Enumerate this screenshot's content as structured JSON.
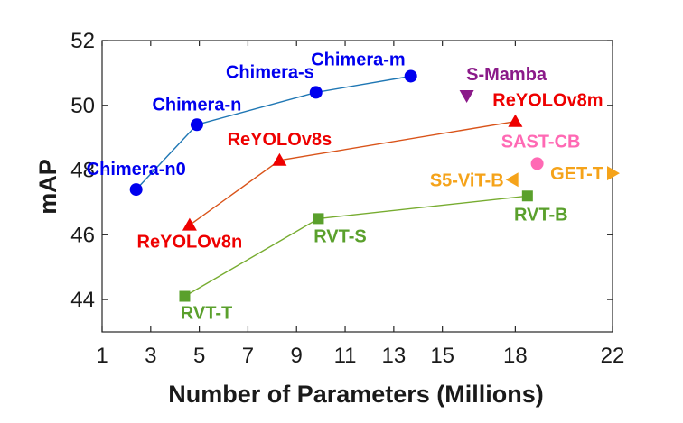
{
  "chart_data": {
    "type": "scatter",
    "title": "",
    "xlabel": "Number of Parameters (Millions)",
    "ylabel": "mAP",
    "xlim": [
      1,
      22
    ],
    "ylim": [
      43,
      52
    ],
    "x_ticks": [
      1,
      3,
      5,
      7,
      9,
      11,
      13,
      15,
      18,
      22
    ],
    "y_ticks": [
      44,
      46,
      48,
      50,
      52
    ],
    "grid": false,
    "series": [
      {
        "color": "#0000ee",
        "line_color": "#1f77b4",
        "marker": "circle",
        "connected": true,
        "points": [
          {
            "x": 2.4,
            "y": 47.4,
            "label": "Chimera-n0"
          },
          {
            "x": 4.9,
            "y": 49.4,
            "label": "Chimera-n"
          },
          {
            "x": 9.8,
            "y": 50.4,
            "label": "Chimera-s"
          },
          {
            "x": 13.7,
            "y": 50.9,
            "label": "Chimera-m"
          }
        ]
      },
      {
        "color": "#ee0000",
        "line_color": "#d95319",
        "marker": "triangle-up",
        "connected": true,
        "points": [
          {
            "x": 4.6,
            "y": 46.3,
            "label": "ReYOLOv8n"
          },
          {
            "x": 8.3,
            "y": 48.3,
            "label": "ReYOLOv8s"
          },
          {
            "x": 18.0,
            "y": 49.5,
            "label": "ReYOLOv8m"
          }
        ]
      },
      {
        "color": "#5aa02c",
        "line_color": "#77ac30",
        "marker": "square",
        "connected": true,
        "points": [
          {
            "x": 4.4,
            "y": 44.1,
            "label": "RVT-T"
          },
          {
            "x": 9.9,
            "y": 46.5,
            "label": "RVT-S"
          },
          {
            "x": 18.5,
            "y": 47.2,
            "label": "RVT-B"
          }
        ]
      },
      {
        "color": "#8b1a89",
        "marker": "triangle-down",
        "connected": false,
        "points": [
          {
            "x": 16.0,
            "y": 50.3,
            "label": "S-Mamba"
          }
        ]
      },
      {
        "color": "#ff69b4",
        "marker": "circle",
        "connected": false,
        "points": [
          {
            "x": 18.9,
            "y": 48.2,
            "label": "SAST-CB"
          }
        ]
      },
      {
        "color": "#f5a31a",
        "marker": "triangle-left",
        "connected": false,
        "points": [
          {
            "x": 17.9,
            "y": 47.7,
            "label": "S5-ViT-B"
          }
        ]
      },
      {
        "color": "#f5a31a",
        "marker": "triangle-right",
        "connected": false,
        "points": [
          {
            "x": 22.0,
            "y": 47.9,
            "label": "GET-T"
          }
        ]
      }
    ]
  }
}
